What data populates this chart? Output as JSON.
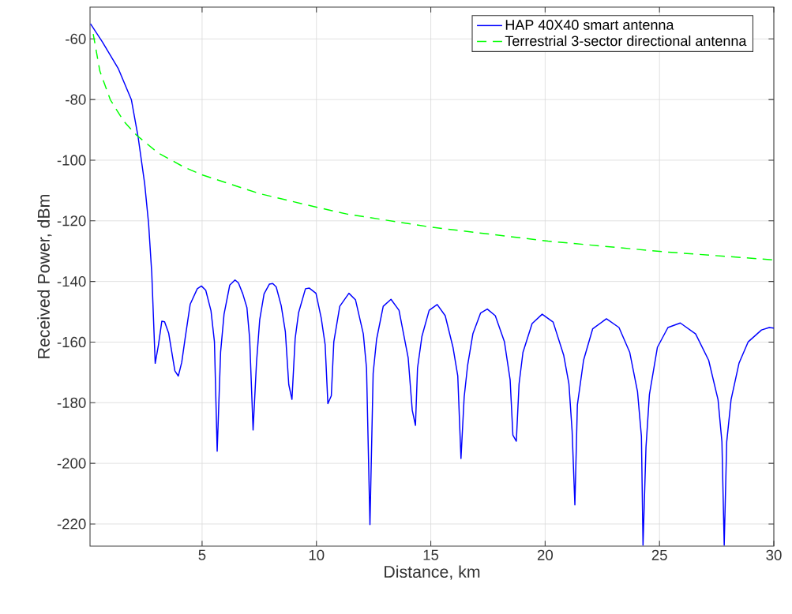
{
  "chart_data": {
    "type": "line",
    "xlabel": "Distance, km",
    "ylabel": "Received Power, dBm",
    "xlim": [
      0.1,
      30
    ],
    "ylim": [
      -227.3,
      -49.5
    ],
    "xticks": [
      5,
      10,
      15,
      20,
      25,
      30
    ],
    "yticks": [
      -220,
      -200,
      -180,
      -160,
      -140,
      -120,
      -100,
      -80,
      -60
    ],
    "grid": true,
    "legend": "top right",
    "series": [
      {
        "name": "HAP 40X40 smart antenna",
        "color": "#0000ff",
        "line_style": "solid",
        "x": [
          0.12,
          0.64,
          1.33,
          1.91,
          2.2,
          2.49,
          2.66,
          2.8,
          2.95,
          3.09,
          3.24,
          3.36,
          3.54,
          3.81,
          3.96,
          4.11,
          4.26,
          4.48,
          4.79,
          4.97,
          5.16,
          5.39,
          5.54,
          5.66,
          5.81,
          5.96,
          6.21,
          6.44,
          6.59,
          6.78,
          6.96,
          7.08,
          7.23,
          7.38,
          7.52,
          7.71,
          7.94,
          8.09,
          8.24,
          8.46,
          8.64,
          8.79,
          8.93,
          9.07,
          9.22,
          9.52,
          9.69,
          9.98,
          10.21,
          10.38,
          10.5,
          10.65,
          10.76,
          11.02,
          11.42,
          11.71,
          12.05,
          12.19,
          12.34,
          12.48,
          12.63,
          12.92,
          13.26,
          13.61,
          14.01,
          14.19,
          14.33,
          14.42,
          14.61,
          14.93,
          15.28,
          15.63,
          15.97,
          16.18,
          16.32,
          16.46,
          16.61,
          16.84,
          17.18,
          17.47,
          17.82,
          18.22,
          18.47,
          18.59,
          18.74,
          18.86,
          19.03,
          19.43,
          19.87,
          20.35,
          20.81,
          21.04,
          21.18,
          21.3,
          21.41,
          21.68,
          22.08,
          22.68,
          23.23,
          23.7,
          24.04,
          24.21,
          24.28,
          24.41,
          24.56,
          24.91,
          25.37,
          25.91,
          26.58,
          27.15,
          27.56,
          27.73,
          27.83,
          27.94,
          28.13,
          28.48,
          28.88,
          29.46,
          29.8,
          30
        ],
        "values": [
          -55,
          -61,
          -69.7,
          -80.1,
          -92.2,
          -107.8,
          -120.8,
          -137.3,
          -167,
          -161,
          -153.1,
          -153.3,
          -157.1,
          -169.5,
          -171.2,
          -166.7,
          -158.7,
          -147.5,
          -142.4,
          -141.5,
          -142.9,
          -149.7,
          -159.9,
          -196,
          -163.3,
          -150.8,
          -141.2,
          -139.5,
          -140.5,
          -144.1,
          -148.6,
          -158.8,
          -189,
          -166.7,
          -152.6,
          -144.1,
          -140.9,
          -140.7,
          -141.8,
          -148,
          -156.5,
          -174,
          -178.9,
          -158.8,
          -150.3,
          -142.4,
          -142.2,
          -143.9,
          -152.1,
          -160.8,
          -180.3,
          -177.7,
          -159.9,
          -148.2,
          -143.9,
          -146.1,
          -157.3,
          -168.6,
          -220.2,
          -170.3,
          -159.1,
          -148.2,
          -145.9,
          -149.5,
          -165.1,
          -182.5,
          -187.5,
          -168.6,
          -158.2,
          -149.5,
          -147.6,
          -151.3,
          -161.7,
          -171.2,
          -198.4,
          -178.1,
          -167.7,
          -157.3,
          -150.4,
          -149.1,
          -151.3,
          -159.9,
          -172.5,
          -190.7,
          -192.7,
          -173.8,
          -163.4,
          -153.9,
          -150.8,
          -153.4,
          -164.3,
          -173.8,
          -189.4,
          -213.7,
          -180.7,
          -166,
          -155.6,
          -152.3,
          -155.2,
          -163.4,
          -176.4,
          -191.1,
          -227,
          -194.6,
          -177.3,
          -161.7,
          -155.2,
          -153.7,
          -157.3,
          -166,
          -179,
          -192.9,
          -227,
          -192.9,
          -179,
          -166.9,
          -159.9,
          -156,
          -155.2,
          -155.4
        ]
      },
      {
        "name": "Terrestrial 3-sector directional antenna",
        "color": "#00ff00",
        "line_style": "dashed",
        "x": [
          0.24,
          0.53,
          0.99,
          1.57,
          2.14,
          3.06,
          4.21,
          5.02,
          7.5,
          10,
          11.36,
          15.03,
          20.13,
          25.17,
          30
        ],
        "values": [
          -58.4,
          -70.6,
          -80.1,
          -87.1,
          -91.8,
          -97.5,
          -102.3,
          -104.9,
          -111,
          -115.5,
          -117.8,
          -122.1,
          -126.7,
          -130.2,
          -132.9
        ]
      }
    ]
  }
}
